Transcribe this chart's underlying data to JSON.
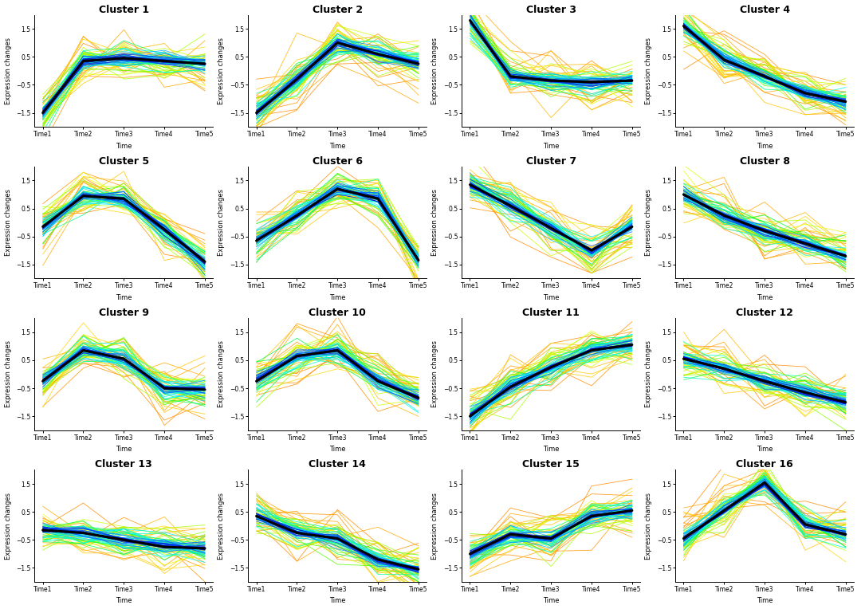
{
  "n_clusters": 16,
  "n_cols": 4,
  "n_rows": 4,
  "time_labels": [
    "Time1",
    "Time2",
    "Time3",
    "Time4",
    "Time5"
  ],
  "xlabel": "Time",
  "ylabel": "Expression changes",
  "ylim": [
    -2.0,
    2.0
  ],
  "yticks": [
    -1.5,
    -0.5,
    0.5,
    1.5
  ],
  "title_fontsize": 9,
  "label_fontsize": 6,
  "tick_fontsize": 5.5,
  "cluster_means": [
    [
      -1.5,
      0.35,
      0.45,
      0.35,
      0.25
    ],
    [
      -1.5,
      -0.3,
      1.0,
      0.6,
      0.25
    ],
    [
      1.8,
      -0.2,
      -0.35,
      -0.4,
      -0.35
    ],
    [
      1.6,
      0.4,
      -0.2,
      -0.8,
      -1.1
    ],
    [
      -0.15,
      0.95,
      0.85,
      -0.25,
      -1.4
    ],
    [
      -0.65,
      0.25,
      1.2,
      0.85,
      -1.35
    ],
    [
      1.35,
      0.6,
      -0.2,
      -1.0,
      -0.15
    ],
    [
      1.0,
      0.25,
      -0.3,
      -0.75,
      -1.2
    ],
    [
      -0.25,
      0.85,
      0.55,
      -0.5,
      -0.55
    ],
    [
      -0.25,
      0.65,
      0.85,
      -0.25,
      -0.85
    ],
    [
      -1.5,
      -0.45,
      0.25,
      0.85,
      1.05
    ],
    [
      0.55,
      0.2,
      -0.25,
      -0.65,
      -1.0
    ],
    [
      -0.15,
      -0.25,
      -0.5,
      -0.75,
      -0.8
    ],
    [
      0.35,
      -0.25,
      -0.45,
      -1.2,
      -1.55
    ],
    [
      -1.0,
      -0.3,
      -0.45,
      0.35,
      0.55
    ],
    [
      -0.45,
      0.55,
      1.55,
      0.05,
      -0.3
    ]
  ],
  "n_lines": 80,
  "max_spread": 0.55,
  "band_colors": [
    "#FF8C00",
    "#FF9500",
    "#FFA800",
    "#FFB800",
    "#FFC800",
    "#FFD700",
    "#E8FF00",
    "#CCFF00",
    "#AAFF00",
    "#88FF00",
    "#55FF00",
    "#00FF44",
    "#00FF99",
    "#00FFCC",
    "#00FFEE",
    "#00EEFF",
    "#00CCFF",
    "#00AAFF",
    "#0088FF",
    "#0055FF",
    "#0033EE",
    "#0011DD",
    "#0000CC",
    "#2200BB",
    "#4400AA"
  ]
}
